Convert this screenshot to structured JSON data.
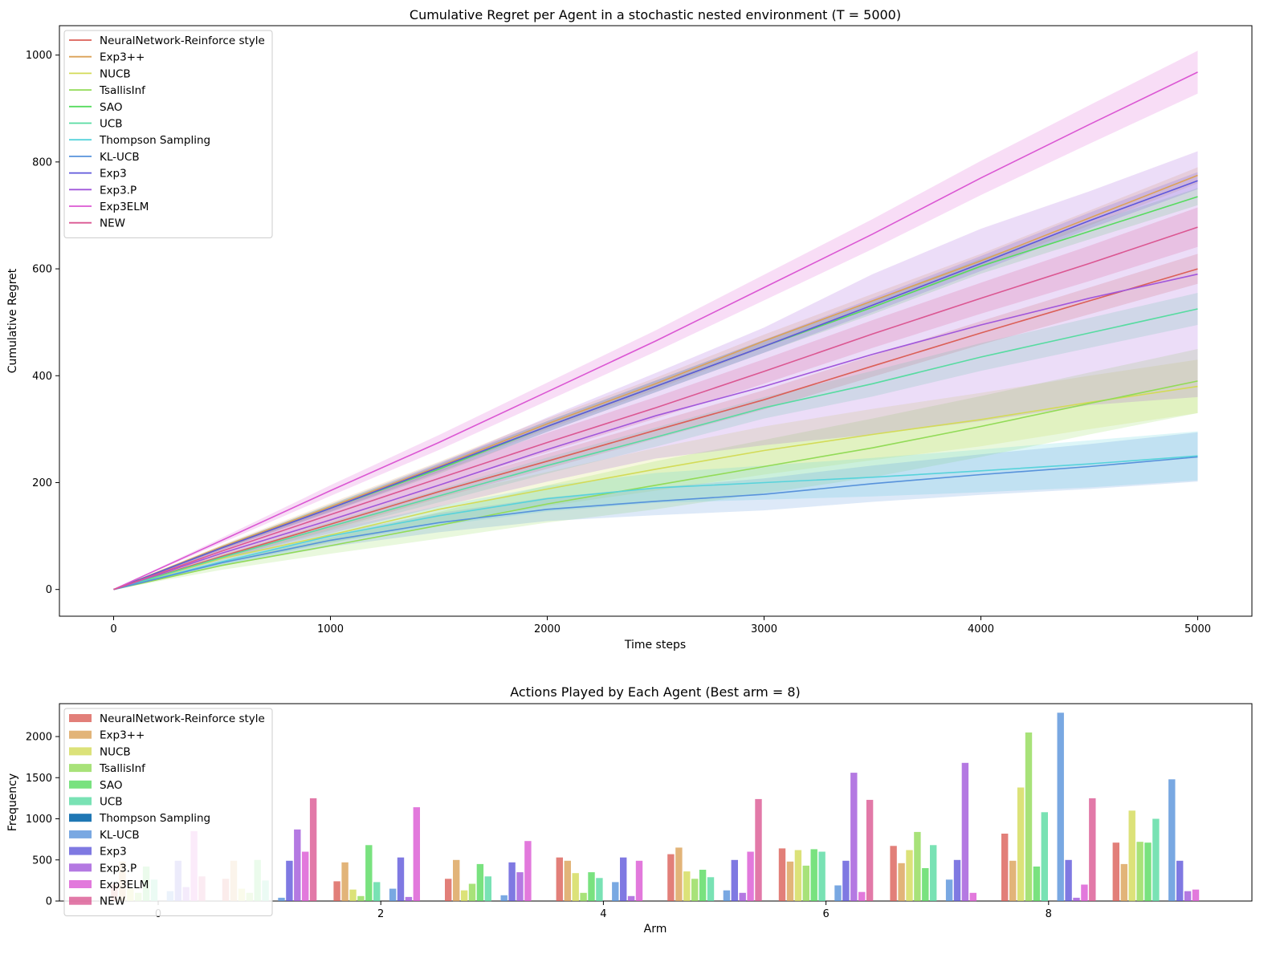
{
  "chart_data": [
    {
      "type": "line",
      "title": "Cumulative Regret per Agent in a stochastic nested environment (T = 5000)",
      "xlabel": "Time steps",
      "ylabel": "Cumulative Regret",
      "xlim": [
        -250,
        5250
      ],
      "ylim": [
        -50,
        1055
      ],
      "xticks": [
        0,
        1000,
        2000,
        3000,
        4000,
        5000
      ],
      "yticks": [
        0,
        200,
        400,
        600,
        800,
        1000
      ],
      "x": [
        0,
        500,
        1000,
        1500,
        2000,
        2500,
        3000,
        3500,
        4000,
        4500,
        5000
      ],
      "legend_position": "top-left",
      "shaded_band": "variability band around each mean curve",
      "series": [
        {
          "name": "NeuralNetwork-Reinforce style",
          "color": "#db5f57",
          "values": [
            0,
            62,
            122,
            183,
            240,
            298,
            355,
            418,
            480,
            540,
            600
          ],
          "band": [
            0,
            5,
            10,
            12,
            14,
            16,
            18,
            20,
            22,
            25,
            28
          ]
        },
        {
          "name": "Exp3++",
          "color": "#dba157",
          "values": [
            0,
            80,
            155,
            230,
            310,
            385,
            465,
            540,
            615,
            695,
            775
          ],
          "band": [
            0,
            4,
            7,
            9,
            10,
            11,
            12,
            13,
            13,
            14,
            15
          ]
        },
        {
          "name": "NUCB",
          "color": "#d3db57",
          "values": [
            0,
            58,
            102,
            150,
            188,
            225,
            260,
            290,
            318,
            350,
            380
          ],
          "band": [
            0,
            8,
            15,
            25,
            32,
            40,
            45,
            48,
            50,
            50,
            50
          ]
        },
        {
          "name": "TsallisInf",
          "color": "#92db57",
          "values": [
            0,
            45,
            82,
            120,
            160,
            195,
            230,
            265,
            305,
            348,
            390
          ],
          "band": [
            0,
            8,
            15,
            25,
            35,
            45,
            50,
            55,
            57,
            58,
            60
          ]
        },
        {
          "name": "SAO",
          "color": "#57db5f",
          "values": [
            0,
            78,
            152,
            225,
            305,
            380,
            455,
            528,
            605,
            670,
            735
          ],
          "band": [
            0,
            4,
            7,
            9,
            10,
            11,
            12,
            13,
            14,
            15,
            16
          ]
        },
        {
          "name": "UCB",
          "color": "#57dba1",
          "values": [
            0,
            60,
            118,
            175,
            232,
            285,
            340,
            385,
            435,
            480,
            525
          ],
          "band": [
            0,
            4,
            8,
            12,
            15,
            18,
            20,
            24,
            26,
            28,
            30
          ]
        },
        {
          "name": "Thompson Sampling",
          "color": "#57d3db",
          "values": [
            0,
            52,
            100,
            138,
            170,
            190,
            200,
            210,
            222,
            235,
            250
          ],
          "band": [
            0,
            6,
            12,
            18,
            24,
            28,
            32,
            36,
            40,
            44,
            46
          ]
        },
        {
          "name": "KL-UCB",
          "color": "#5792db",
          "values": [
            0,
            50,
            92,
            125,
            150,
            165,
            178,
            198,
            215,
            230,
            248
          ],
          "band": [
            0,
            6,
            12,
            18,
            22,
            26,
            30,
            34,
            38,
            42,
            46
          ]
        },
        {
          "name": "Exp3",
          "color": "#5f57db",
          "values": [
            0,
            78,
            152,
            228,
            305,
            380,
            455,
            532,
            610,
            690,
            765
          ],
          "band": [
            0,
            4,
            7,
            9,
            10,
            11,
            12,
            13,
            14,
            15,
            16
          ]
        },
        {
          "name": "Exp3.P",
          "color": "#a157db",
          "values": [
            0,
            68,
            130,
            195,
            262,
            325,
            380,
            440,
            495,
            545,
            590
          ],
          "band": [
            0,
            10,
            25,
            40,
            60,
            80,
            110,
            150,
            180,
            200,
            230
          ]
        },
        {
          "name": "Exp3ELM",
          "color": "#db57d3",
          "values": [
            0,
            92,
            185,
            275,
            370,
            465,
            565,
            665,
            770,
            870,
            968
          ],
          "band": [
            0,
            5,
            10,
            14,
            17,
            20,
            24,
            28,
            32,
            36,
            40
          ]
        },
        {
          "name": "NEW",
          "color": "#db5792",
          "values": [
            0,
            72,
            140,
            208,
            275,
            340,
            408,
            478,
            545,
            610,
            678
          ],
          "band": [
            0,
            5,
            10,
            14,
            18,
            20,
            23,
            26,
            29,
            33,
            37
          ]
        }
      ]
    },
    {
      "type": "bar",
      "title": "Actions Played by Each Agent (Best arm = 8)",
      "xlabel": "Arm",
      "ylabel": "Frequency",
      "categories": [
        0,
        1,
        2,
        3,
        4,
        5,
        6,
        7,
        8,
        9
      ],
      "xticks": [
        0,
        2,
        4,
        6,
        8
      ],
      "yticks": [
        0,
        500,
        1000,
        1500,
        2000
      ],
      "ylim": [
        0,
        2400
      ],
      "legend_position": "top-left",
      "series": [
        {
          "name": "NeuralNetwork-Reinforce style",
          "color": "#db5f57",
          "values": [
            200,
            270,
            240,
            270,
            530,
            570,
            640,
            670,
            820,
            710
          ]
        },
        {
          "name": "Exp3++",
          "color": "#dba157",
          "values": [
            480,
            490,
            470,
            500,
            490,
            650,
            480,
            460,
            490,
            450
          ]
        },
        {
          "name": "NUCB",
          "color": "#d3db57",
          "values": [
            150,
            150,
            140,
            130,
            340,
            360,
            620,
            620,
            1380,
            1100
          ]
        },
        {
          "name": "TsallisInf",
          "color": "#92db57",
          "values": [
            100,
            100,
            60,
            210,
            100,
            270,
            430,
            840,
            2050,
            720
          ]
        },
        {
          "name": "SAO",
          "color": "#57db5f",
          "values": [
            420,
            500,
            680,
            450,
            350,
            380,
            630,
            400,
            420,
            710
          ]
        },
        {
          "name": "UCB",
          "color": "#57dba1",
          "values": [
            260,
            250,
            230,
            300,
            280,
            290,
            600,
            680,
            1080,
            1000
          ]
        },
        {
          "name": "Thompson Sampling",
          "color": "#1f77b4",
          "values": [
            0,
            0,
            0,
            0,
            0,
            0,
            0,
            0,
            0,
            0
          ]
        },
        {
          "name": "KL-UCB",
          "color": "#5792db",
          "values": [
            120,
            40,
            150,
            70,
            230,
            130,
            190,
            260,
            2290,
            1480
          ]
        },
        {
          "name": "Exp3",
          "color": "#5f57db",
          "values": [
            490,
            490,
            530,
            470,
            530,
            500,
            490,
            500,
            500,
            490
          ]
        },
        {
          "name": "Exp3.P",
          "color": "#a157db",
          "values": [
            170,
            870,
            50,
            350,
            60,
            100,
            1560,
            1680,
            40,
            120
          ]
        },
        {
          "name": "Exp3ELM",
          "color": "#db57d3",
          "values": [
            850,
            600,
            1140,
            730,
            490,
            600,
            110,
            100,
            200,
            140
          ]
        },
        {
          "name": "NEW",
          "color": "#db5792",
          "values": [
            300,
            1250,
            0,
            0,
            0,
            1240,
            1230,
            0,
            1250,
            0
          ]
        }
      ]
    }
  ]
}
